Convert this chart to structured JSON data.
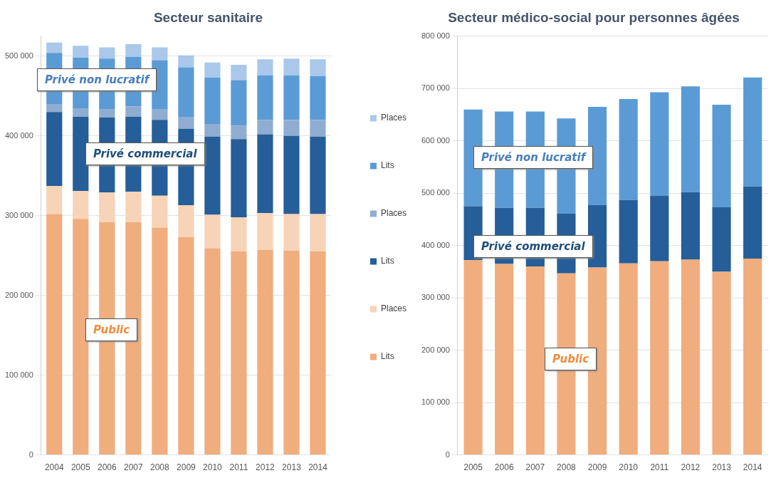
{
  "chart_data": [
    {
      "type": "bar",
      "title": "Secteur sanitaire",
      "stacked": true,
      "grid": "y",
      "legend": "right",
      "categories": [
        "2004",
        "2005",
        "2006",
        "2007",
        "2008",
        "2009",
        "2010",
        "2011",
        "2012",
        "2013",
        "2014"
      ],
      "ylim": [
        0,
        525000
      ],
      "yticks": [
        {
          "value": 0,
          "label": "0"
        },
        {
          "value": 100000,
          "label": "100 000"
        },
        {
          "value": 200000,
          "label": "200 000"
        },
        {
          "value": 300000,
          "label": "300 000"
        },
        {
          "value": 400000,
          "label": "400 000"
        },
        {
          "value": 500000,
          "label": "500 000"
        }
      ],
      "series": [
        {
          "name": "Lits",
          "color": "#f0ad7e",
          "values": [
            302000,
            296000,
            292000,
            292000,
            285000,
            273000,
            259000,
            255000,
            257000,
            256000,
            255000
          ]
        },
        {
          "name": "Places",
          "color": "#f7d3b8",
          "values": [
            35000,
            35000,
            37000,
            38000,
            40000,
            40000,
            42000,
            43000,
            46000,
            46000,
            47000
          ]
        },
        {
          "name": "Lits",
          "color": "#255e98",
          "values": [
            93000,
            93000,
            94000,
            94000,
            95000,
            96000,
            98000,
            98000,
            99000,
            98000,
            97000
          ]
        },
        {
          "name": "Places",
          "color": "#8fadd0",
          "values": [
            10000,
            10000,
            10000,
            13000,
            13000,
            15000,
            16000,
            17000,
            18000,
            20000,
            21000
          ]
        },
        {
          "name": "Lits",
          "color": "#5b9bd5",
          "values": [
            64000,
            64000,
            64000,
            62000,
            62000,
            62000,
            58000,
            57000,
            56000,
            56000,
            55000
          ]
        },
        {
          "name": "Places",
          "color": "#a9c8ea",
          "values": [
            13000,
            15000,
            14000,
            16000,
            16000,
            15000,
            19000,
            19000,
            20000,
            21000,
            21000
          ]
        }
      ],
      "annotations": [
        "Privé non lucratif",
        "Privé commercial",
        "Public"
      ]
    },
    {
      "type": "bar",
      "title": "Secteur médico-social pour personnes âgées",
      "stacked": true,
      "grid": "y",
      "categories": [
        "2005",
        "2006",
        "2007",
        "2008",
        "2009",
        "2010",
        "2011",
        "2012",
        "2013",
        "2014"
      ],
      "ylim": [
        0,
        800000
      ],
      "yticks": [
        {
          "value": 0,
          "label": "0"
        },
        {
          "value": 100000,
          "label": "100 000"
        },
        {
          "value": 200000,
          "label": "200 000"
        },
        {
          "value": 300000,
          "label": "300 000"
        },
        {
          "value": 400000,
          "label": "400 000"
        },
        {
          "value": 500000,
          "label": "500 000"
        },
        {
          "value": 600000,
          "label": "600 000"
        },
        {
          "value": 700000,
          "label": "700 000"
        },
        {
          "value": 800000,
          "label": "800 000"
        }
      ],
      "series": [
        {
          "color": "#f0ad7e",
          "values": [
            372000,
            365000,
            360000,
            347000,
            358000,
            366000,
            370000,
            373000,
            350000,
            375000
          ]
        },
        {
          "color": "#255e98",
          "values": [
            103000,
            107000,
            112000,
            114000,
            119000,
            121000,
            125000,
            129000,
            123000,
            138000
          ]
        },
        {
          "color": "#5b9bd5",
          "values": [
            185000,
            184000,
            184000,
            182000,
            188000,
            193000,
            198000,
            202000,
            196000,
            208000
          ]
        }
      ],
      "annotations": [
        "Privé non lucratif",
        "Privé commercial",
        "Public"
      ]
    }
  ]
}
